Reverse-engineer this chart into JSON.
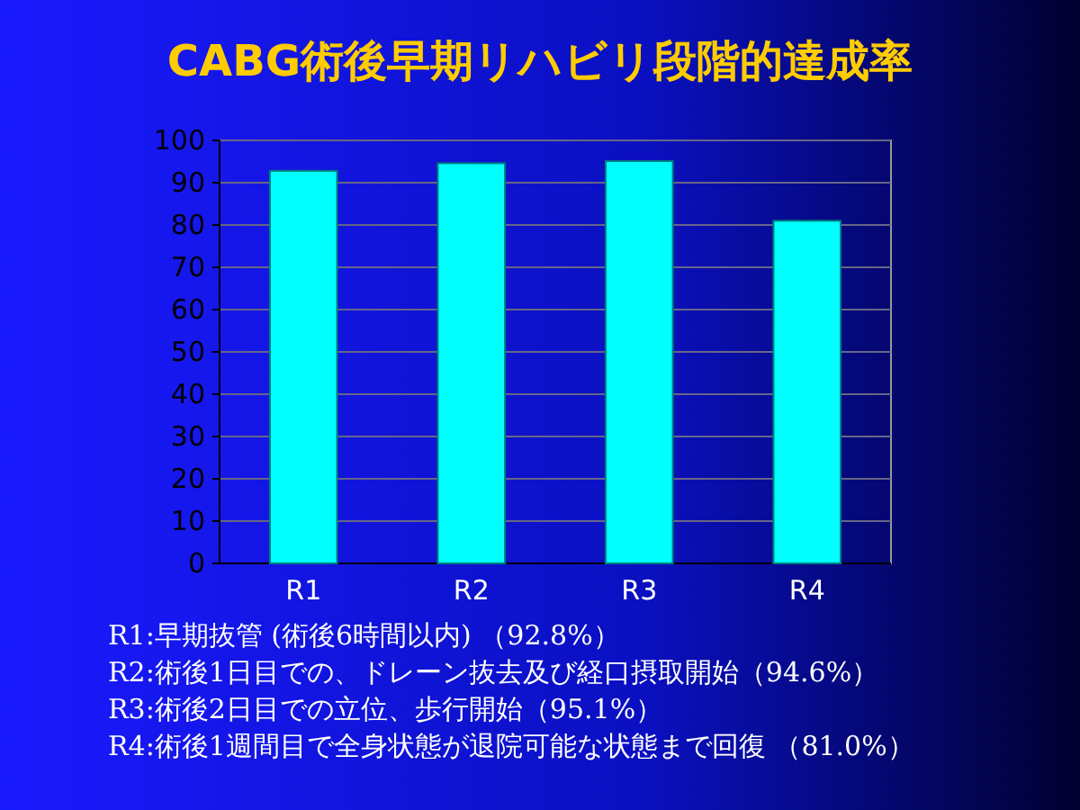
{
  "chart_data": {
    "type": "bar",
    "title": "CABG術後早期リハビリ段階的達成率",
    "categories": [
      "R1",
      "R2",
      "R3",
      "R4"
    ],
    "values": [
      92.8,
      94.6,
      95.1,
      81.0
    ],
    "color": "#00ffff",
    "ylim": [
      0,
      100
    ],
    "yticks": [
      0,
      10,
      20,
      30,
      40,
      50,
      60,
      70,
      80,
      90,
      100
    ],
    "grid": "y",
    "annotations": [
      "R1:早期抜管 (術後6時間以内) （92.8%）",
      "R2:術後1日目での、ドレーン抜去及び経口摂取開始（94.6%）",
      "R3:術後2日目での立位、歩行開始（95.1%）",
      "R4:術後1週間目で全身状態が退院可能な状態まで回復 （81.0%）"
    ]
  }
}
